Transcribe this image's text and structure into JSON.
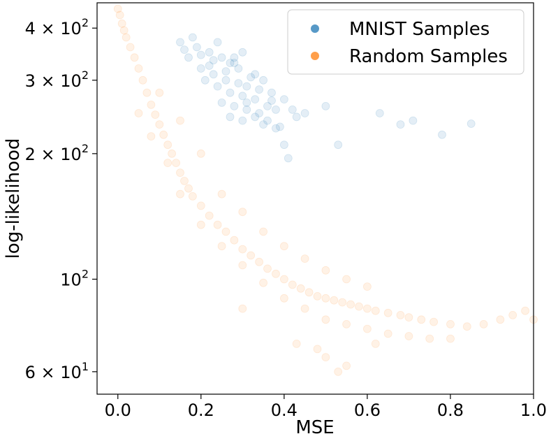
{
  "chart_data": {
    "type": "scatter",
    "title": "",
    "xlabel": "MSE",
    "ylabel": "log-likelihood",
    "xlim": [
      -0.05,
      1.0
    ],
    "ylim": [
      53,
      460
    ],
    "yscale": "log",
    "grid": false,
    "legend_position": "top-right",
    "x_ticks": [
      {
        "value": 0.0,
        "label": "0.0"
      },
      {
        "value": 0.2,
        "label": "0.2"
      },
      {
        "value": 0.4,
        "label": "0.4"
      },
      {
        "value": 0.6,
        "label": "0.6"
      },
      {
        "value": 0.8,
        "label": "0.8"
      },
      {
        "value": 1.0,
        "label": "1.0"
      }
    ],
    "y_ticks": [
      {
        "value": 60,
        "base": "6 × 10",
        "exp": "1"
      },
      {
        "value": 100,
        "base": "10",
        "exp": "2"
      },
      {
        "value": 200,
        "base": "2 × 10",
        "exp": "2"
      },
      {
        "value": 300,
        "base": "3 × 10",
        "exp": "2"
      },
      {
        "value": 400,
        "base": "4 × 10",
        "exp": "2"
      }
    ],
    "series": [
      {
        "name": "MNIST Samples",
        "color": "#1f77b4",
        "alpha": 0.12,
        "points": [
          [
            0.19,
            360
          ],
          [
            0.22,
            350
          ],
          [
            0.25,
            340
          ],
          [
            0.28,
            330
          ],
          [
            0.17,
            340
          ],
          [
            0.2,
            320
          ],
          [
            0.23,
            310
          ],
          [
            0.26,
            300
          ],
          [
            0.29,
            295
          ],
          [
            0.31,
            290
          ],
          [
            0.21,
            300
          ],
          [
            0.24,
            290
          ],
          [
            0.27,
            280
          ],
          [
            0.3,
            275
          ],
          [
            0.33,
            270
          ],
          [
            0.25,
            265
          ],
          [
            0.28,
            260
          ],
          [
            0.31,
            255
          ],
          [
            0.34,
            250
          ],
          [
            0.27,
            245
          ],
          [
            0.3,
            240
          ],
          [
            0.33,
            245
          ],
          [
            0.36,
            260
          ],
          [
            0.38,
            255
          ],
          [
            0.4,
            270
          ],
          [
            0.15,
            370
          ],
          [
            0.18,
            380
          ],
          [
            0.24,
            370
          ],
          [
            0.3,
            350
          ],
          [
            0.35,
            300
          ],
          [
            0.37,
            280
          ],
          [
            0.22,
            325
          ],
          [
            0.26,
            315
          ],
          [
            0.32,
            305
          ],
          [
            0.29,
            320
          ],
          [
            0.34,
            285
          ],
          [
            0.2,
            345
          ],
          [
            0.16,
            355
          ],
          [
            0.23,
            335
          ],
          [
            0.27,
            330
          ],
          [
            0.31,
            265
          ],
          [
            0.36,
            240
          ],
          [
            0.39,
            232
          ],
          [
            0.42,
            255
          ],
          [
            0.45,
            250
          ],
          [
            0.5,
            260
          ],
          [
            0.53,
            210
          ],
          [
            0.63,
            250
          ],
          [
            0.68,
            235
          ],
          [
            0.71,
            240
          ],
          [
            0.78,
            222
          ],
          [
            0.85,
            236
          ],
          [
            0.4,
            210
          ],
          [
            0.38,
            230
          ],
          [
            0.35,
            235
          ],
          [
            0.43,
            245
          ],
          [
            0.41,
            195
          ],
          [
            0.37,
            268
          ],
          [
            0.33,
            310
          ],
          [
            0.28,
            340
          ]
        ]
      },
      {
        "name": "Random Samples",
        "color": "#ff7f0e",
        "alpha": 0.1,
        "points": [
          [
            0.0,
            445
          ],
          [
            0.005,
            430
          ],
          [
            0.01,
            410
          ],
          [
            0.015,
            395
          ],
          [
            0.02,
            380
          ],
          [
            0.03,
            360
          ],
          [
            0.04,
            340
          ],
          [
            0.05,
            320
          ],
          [
            0.06,
            300
          ],
          [
            0.07,
            280
          ],
          [
            0.08,
            262
          ],
          [
            0.09,
            248
          ],
          [
            0.1,
            235
          ],
          [
            0.11,
            222
          ],
          [
            0.12,
            210
          ],
          [
            0.13,
            200
          ],
          [
            0.14,
            190
          ],
          [
            0.15,
            180
          ],
          [
            0.16,
            172
          ],
          [
            0.17,
            165
          ],
          [
            0.18,
            158
          ],
          [
            0.2,
            150
          ],
          [
            0.22,
            142
          ],
          [
            0.24,
            135
          ],
          [
            0.26,
            130
          ],
          [
            0.28,
            124
          ],
          [
            0.3,
            118
          ],
          [
            0.32,
            114
          ],
          [
            0.34,
            110
          ],
          [
            0.36,
            106
          ],
          [
            0.38,
            103
          ],
          [
            0.4,
            100
          ],
          [
            0.42,
            97
          ],
          [
            0.44,
            95
          ],
          [
            0.46,
            93
          ],
          [
            0.48,
            91
          ],
          [
            0.5,
            90
          ],
          [
            0.52,
            89
          ],
          [
            0.54,
            88
          ],
          [
            0.56,
            87
          ],
          [
            0.58,
            86
          ],
          [
            0.6,
            85
          ],
          [
            0.62,
            84
          ],
          [
            0.65,
            83
          ],
          [
            0.68,
            82
          ],
          [
            0.7,
            81
          ],
          [
            0.73,
            80
          ],
          [
            0.76,
            79
          ],
          [
            0.8,
            78
          ],
          [
            0.84,
            77
          ],
          [
            0.88,
            78
          ],
          [
            0.92,
            80
          ],
          [
            0.95,
            82
          ],
          [
            0.98,
            84
          ],
          [
            1.0,
            80
          ],
          [
            0.05,
            250
          ],
          [
            0.08,
            220
          ],
          [
            0.12,
            190
          ],
          [
            0.15,
            160
          ],
          [
            0.2,
            135
          ],
          [
            0.25,
            120
          ],
          [
            0.3,
            108
          ],
          [
            0.35,
            98
          ],
          [
            0.4,
            90
          ],
          [
            0.45,
            85
          ],
          [
            0.5,
            80
          ],
          [
            0.55,
            78
          ],
          [
            0.6,
            76
          ],
          [
            0.65,
            74
          ],
          [
            0.7,
            73
          ],
          [
            0.75,
            72
          ],
          [
            0.8,
            72
          ],
          [
            0.25,
            160
          ],
          [
            0.3,
            145
          ],
          [
            0.35,
            130
          ],
          [
            0.4,
            120
          ],
          [
            0.45,
            112
          ],
          [
            0.5,
            105
          ],
          [
            0.55,
            100
          ],
          [
            0.6,
            96
          ],
          [
            0.1,
            280
          ],
          [
            0.15,
            240
          ],
          [
            0.2,
            200
          ],
          [
            0.5,
            65
          ],
          [
            0.53,
            60
          ],
          [
            0.55,
            62
          ],
          [
            0.43,
            70
          ],
          [
            0.48,
            68
          ],
          [
            0.62,
            70
          ],
          [
            0.3,
            85
          ]
        ]
      }
    ]
  }
}
